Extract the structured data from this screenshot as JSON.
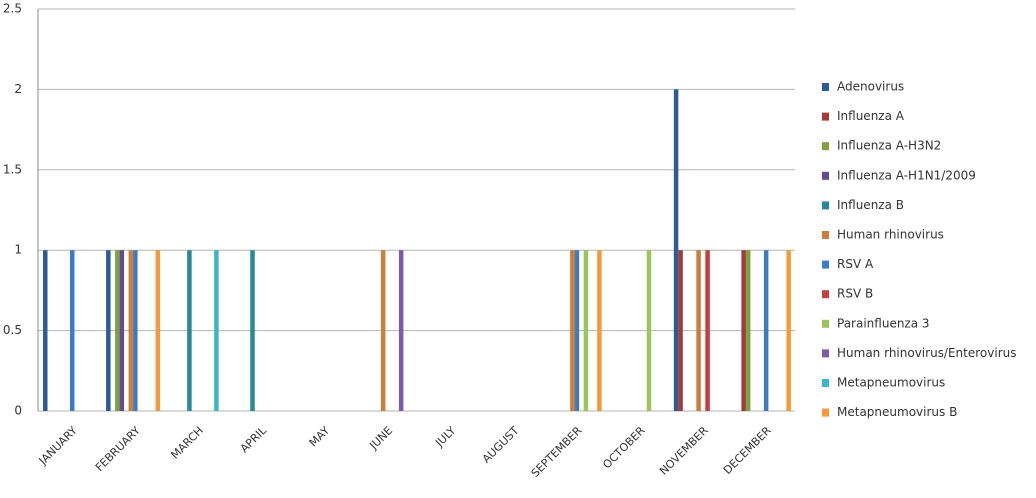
{
  "chart_data": {
    "type": "bar",
    "categories": [
      "JANUARY",
      "FEBRUARY",
      "MARCH",
      "APRIL",
      "MAY",
      "JUNE",
      "JULY",
      "AUGUST",
      "SEPTEMBER",
      "OCTOBER",
      "NOVEMBER",
      "DECEMBER"
    ],
    "series": [
      {
        "name": "Adenovirus",
        "color": "#2d5b96",
        "values": [
          1,
          1,
          0,
          0,
          0,
          0,
          0,
          0,
          0,
          0,
          2,
          0
        ]
      },
      {
        "name": "Influenza A",
        "color": "#a33b3a",
        "values": [
          0,
          0,
          0,
          0,
          0,
          0,
          0,
          0,
          0,
          0,
          1,
          1
        ]
      },
      {
        "name": "Influenza A-H3N2",
        "color": "#7fa03f",
        "values": [
          0,
          1,
          0,
          0,
          0,
          0,
          0,
          0,
          0,
          0,
          0,
          1
        ]
      },
      {
        "name": "Influenza A-H1N1/2009",
        "color": "#654a90",
        "values": [
          0,
          1,
          0,
          0,
          0,
          0,
          0,
          0,
          0,
          0,
          0,
          0
        ]
      },
      {
        "name": "Influenza B",
        "color": "#268a9a",
        "values": [
          0,
          0,
          1,
          1,
          0,
          0,
          0,
          0,
          0,
          0,
          0,
          0
        ]
      },
      {
        "name": "Human rhinovirus",
        "color": "#cf7d3b",
        "values": [
          0,
          1,
          0,
          0,
          0,
          1,
          0,
          0,
          1,
          0,
          1,
          0
        ]
      },
      {
        "name": "RSV A",
        "color": "#3b7dc2",
        "values": [
          1,
          1,
          0,
          0,
          0,
          0,
          0,
          0,
          1,
          0,
          0,
          1
        ]
      },
      {
        "name": "RSV B",
        "color": "#c0413f",
        "values": [
          0,
          0,
          0,
          0,
          0,
          0,
          0,
          0,
          0,
          0,
          1,
          0
        ]
      },
      {
        "name": "Parainfluenza 3",
        "color": "#9cc55a",
        "values": [
          0,
          0,
          0,
          0,
          0,
          0,
          0,
          0,
          1,
          1,
          0,
          0
        ]
      },
      {
        "name": "Human rhinovirus/Enterovirus",
        "color": "#7c5ca7",
        "values": [
          0,
          0,
          0,
          0,
          0,
          1,
          0,
          0,
          0,
          0,
          0,
          0
        ]
      },
      {
        "name": "Metapneumovirus",
        "color": "#3bb6cb",
        "values": [
          0,
          0,
          1,
          0,
          0,
          0,
          0,
          0,
          0,
          0,
          0,
          0
        ]
      },
      {
        "name": "Metapneumovirus B",
        "color": "#f49a3b",
        "values": [
          0,
          1,
          0,
          0,
          0,
          0,
          0,
          0,
          1,
          0,
          0,
          1
        ]
      }
    ],
    "ylim": [
      0,
      2.5
    ],
    "yticks": [
      0,
      0.5,
      1,
      1.5,
      2,
      2.5
    ],
    "grid": true
  }
}
